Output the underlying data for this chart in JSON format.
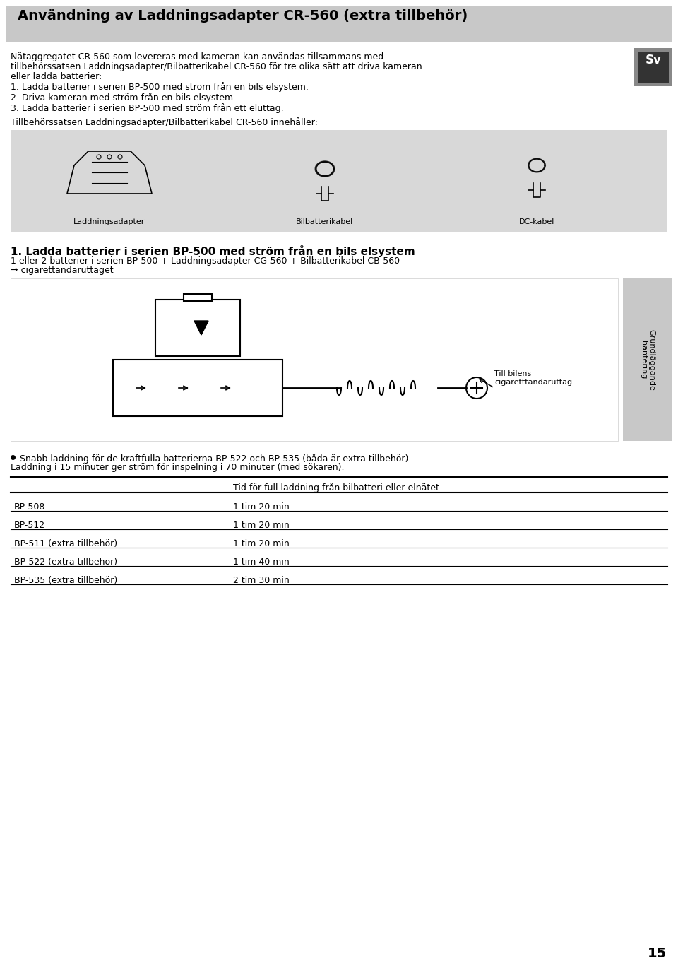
{
  "title": "Användning av Laddningsadapter CR-560 (extra tillbehör)",
  "title_bg": "#c8c8c8",
  "title_color": "#000000",
  "body_bg": "#ffffff",
  "intro_text": "Nätaggregatet CR-560 som levereras med kameran kan användas tillsammans med tillbehörssatsen Laddningsadapter/Bilbatterikabel CR-560 för tre olika sätt att driva kameran eller ladda batterier:",
  "list_items": [
    "1. Ladda batterier i serien BP-500 med ström från en bils elsystem.",
    "2. Driva kameran med ström från en bils elsystem.",
    "3. Ladda batterier i serien BP-500 med ström från ett eluttag."
  ],
  "accessories_intro": "Tillbehörssatsen Laddningsadapter/Bilbatterikabel CR-560 innehåller:",
  "accessories_bg": "#d8d8d8",
  "accessories": [
    "Laddningsadapter",
    "Bilbatterikabel",
    "DC-kabel"
  ],
  "section1_title": "1. Ladda batterier i serien BP-500 med ström från en bils elsystem",
  "section1_subtitle": "1 eller 2 batterier i serien BP-500 + Laddningsadapter CG-560 + Bilbatterikabel CB-560\n→ cigarettändaruttaget",
  "diagram_label": "Till bilens\ncigaretttändaruttag",
  "diagram_bg": "#ffffff",
  "side_label": "Grundläggande\nhantering",
  "side_bg": "#c8c8c8",
  "bullet_text": "Snabb laddning för de kraftfulla batterierna BP-522 och BP-535 (båda är extra tillbehör).\nLaddning i 15 minuter ger ström för inspelning i 70 minuter (med sökaren).",
  "table_header_col1": "",
  "table_header_col2": "Tid för full laddning från bilbatteri eller elnätet",
  "table_rows": [
    [
      "BP-508",
      "1 tim 20 min"
    ],
    [
      "BP-512",
      "1 tim 20 min"
    ],
    [
      "BP-511 (extra tillbehör)",
      "1 tim 20 min"
    ],
    [
      "BP-522 (extra tillbehör)",
      "1 tim 40 min"
    ],
    [
      "BP-535 (extra tillbehör)",
      "2 tim 30 min"
    ]
  ],
  "sv_bg": "#333333",
  "sv_text": "Sv",
  "page_number": "15",
  "font_size_title": 14,
  "font_size_body": 9,
  "font_size_section": 11,
  "font_size_table": 9,
  "font_size_page": 14
}
